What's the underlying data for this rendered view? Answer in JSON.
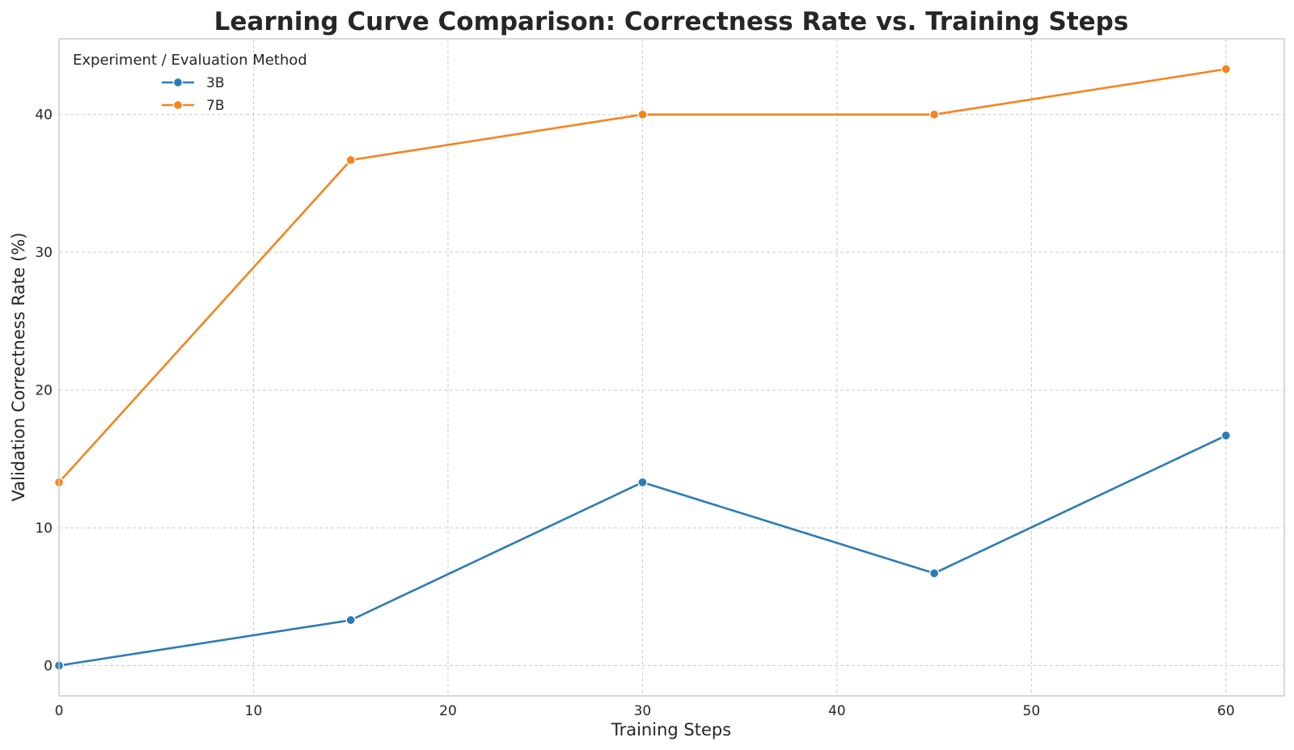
{
  "chart_data": {
    "type": "line",
    "title": "Learning Curve Comparison: Correctness Rate vs. Training Steps",
    "xlabel": "Training Steps",
    "ylabel": "Validation Correctness Rate (%)",
    "xlim": [
      0,
      63
    ],
    "ylim": [
      -2.2,
      45.5
    ],
    "xticks": [
      0,
      10,
      20,
      30,
      40,
      50,
      60
    ],
    "yticks": [
      0,
      10,
      20,
      30,
      40
    ],
    "grid": true,
    "legend": {
      "title": "Experiment / Evaluation Method",
      "placement": "top-left"
    },
    "series": [
      {
        "name": "3B",
        "color": "#2c7bb6",
        "x": [
          0,
          15,
          30,
          45,
          60
        ],
        "y": [
          0.0,
          3.3,
          13.3,
          6.7,
          16.7
        ]
      },
      {
        "name": "7B",
        "color": "#f5841f",
        "x": [
          0,
          15,
          30,
          45,
          60
        ],
        "y": [
          13.3,
          36.7,
          40.0,
          40.0,
          43.3
        ]
      }
    ]
  }
}
